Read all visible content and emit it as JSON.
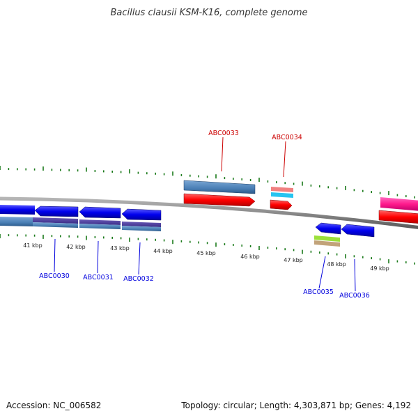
{
  "title": "Bacillus clausii KSM-K16, complete genome",
  "footer": {
    "accession": "Accession: NC_006582",
    "summary": "Topology: circular; Length: 4,303,871 bp; Genes: 4,192"
  },
  "ruler": {
    "labels": [
      "41 kbp",
      "42 kbp",
      "43 kbp",
      "44 kbp",
      "45 kbp",
      "46 kbp",
      "47 kbp",
      "48 kbp",
      "49 kbp"
    ]
  },
  "genes": [
    {
      "label": "ABC0030",
      "strand": "reverse",
      "color": "#0000dd"
    },
    {
      "label": "ABC0031",
      "strand": "reverse",
      "color": "#0000dd"
    },
    {
      "label": "ABC0032",
      "strand": "reverse",
      "color": "#0000dd"
    },
    {
      "label": "ABC0033",
      "strand": "forward",
      "color": "#cc0000"
    },
    {
      "label": "ABC0034",
      "strand": "forward",
      "color": "#cc0000"
    },
    {
      "label": "ABC0035",
      "strand": "reverse",
      "color": "#0000dd"
    },
    {
      "label": "ABC0036",
      "strand": "reverse",
      "color": "#0000dd"
    }
  ],
  "colors": {
    "backbone": "#808080",
    "ticks": "#1a7a1a",
    "forward_gene": "#ff0000",
    "reverse_gene": "#0000ee",
    "forward_label": "#cc0000",
    "reverse_label": "#0000dd",
    "steelblue_feature": "#4a7fb5",
    "pink_feature": "#ff2a9a"
  }
}
